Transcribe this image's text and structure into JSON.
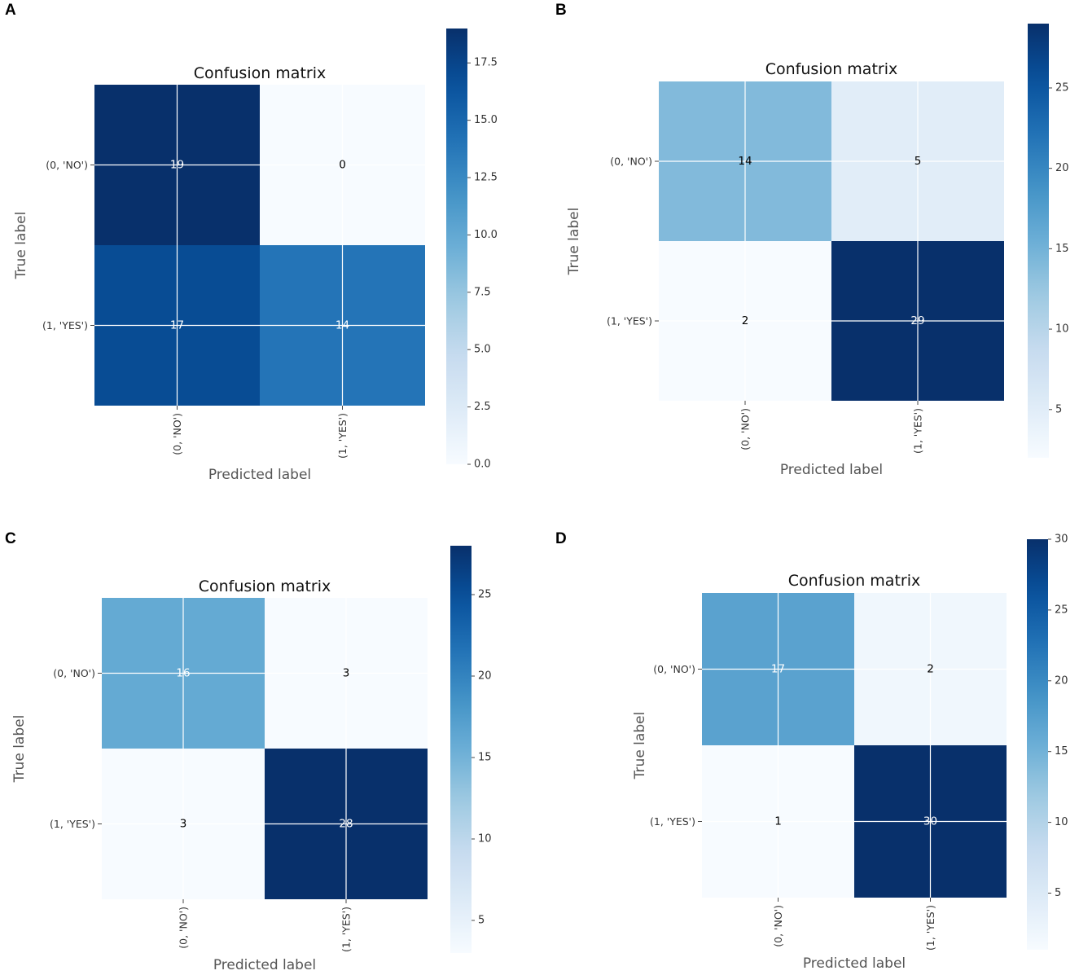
{
  "chart_data": [
    {
      "panel": "A",
      "type": "heatmap",
      "title": "Confusion matrix",
      "xlabel": "Predicted label",
      "ylabel": "True label",
      "x_tick_labels": [
        "(0, 'NO')",
        "(1, 'YES')"
      ],
      "y_tick_labels": [
        "(0, 'NO')",
        "(1, 'YES')"
      ],
      "matrix": [
        [
          19,
          0
        ],
        [
          17,
          14
        ]
      ],
      "colorbar": {
        "min": 0,
        "max": 19,
        "ticks": [
          0.0,
          2.5,
          5.0,
          7.5,
          10.0,
          12.5,
          15.0,
          17.5
        ],
        "tick_labels": [
          "0.0",
          "2.5",
          "5.0",
          "7.5",
          "10.0",
          "12.5",
          "15.0",
          "17.5"
        ]
      },
      "colormap": "Blues",
      "grid": true
    },
    {
      "panel": "B",
      "type": "heatmap",
      "title": "Confusion matrix",
      "xlabel": "Predicted label",
      "ylabel": "True label",
      "x_tick_labels": [
        "(0, 'NO')",
        "(1, 'YES')"
      ],
      "y_tick_labels": [
        "(0, 'NO')",
        "(1, 'YES')"
      ],
      "matrix": [
        [
          14,
          5
        ],
        [
          2,
          29
        ]
      ],
      "colorbar": {
        "min": 2,
        "max": 29,
        "ticks": [
          5,
          10,
          15,
          20,
          25
        ],
        "tick_labels": [
          "5",
          "10",
          "15",
          "20",
          "25"
        ]
      },
      "colormap": "Blues",
      "grid": true
    },
    {
      "panel": "C",
      "type": "heatmap",
      "title": "Confusion matrix",
      "xlabel": "Predicted label",
      "ylabel": "True label",
      "x_tick_labels": [
        "(0, 'NO')",
        "(1, 'YES')"
      ],
      "y_tick_labels": [
        "(0, 'NO')",
        "(1, 'YES')"
      ],
      "matrix": [
        [
          16,
          3
        ],
        [
          3,
          28
        ]
      ],
      "colorbar": {
        "min": 3,
        "max": 28,
        "ticks": [
          5,
          10,
          15,
          20,
          25
        ],
        "tick_labels": [
          "5",
          "10",
          "15",
          "20",
          "25"
        ]
      },
      "colormap": "Blues",
      "grid": true
    },
    {
      "panel": "D",
      "type": "heatmap",
      "title": "Confusion matrix",
      "xlabel": "Predicted label",
      "ylabel": "True label",
      "x_tick_labels": [
        "(0, 'NO')",
        "(1, 'YES')"
      ],
      "y_tick_labels": [
        "(0, 'NO')",
        "(1, 'YES')"
      ],
      "matrix": [
        [
          17,
          2
        ],
        [
          1,
          30
        ]
      ],
      "colorbar": {
        "min": 1,
        "max": 30,
        "ticks": [
          5,
          10,
          15,
          20,
          25,
          30
        ],
        "tick_labels": [
          "5",
          "10",
          "15",
          "20",
          "25",
          "30"
        ]
      },
      "colormap": "Blues",
      "grid": true
    }
  ],
  "colors": {
    "blues_scale": [
      "#f7fbff",
      "#deebf7",
      "#c6dbef",
      "#9ecae1",
      "#6baed6",
      "#4292c6",
      "#2171b5",
      "#08519c",
      "#08306b"
    ],
    "grid_line": "#ffffff",
    "text_dark": "#000000",
    "text_light": "#ffffff"
  }
}
